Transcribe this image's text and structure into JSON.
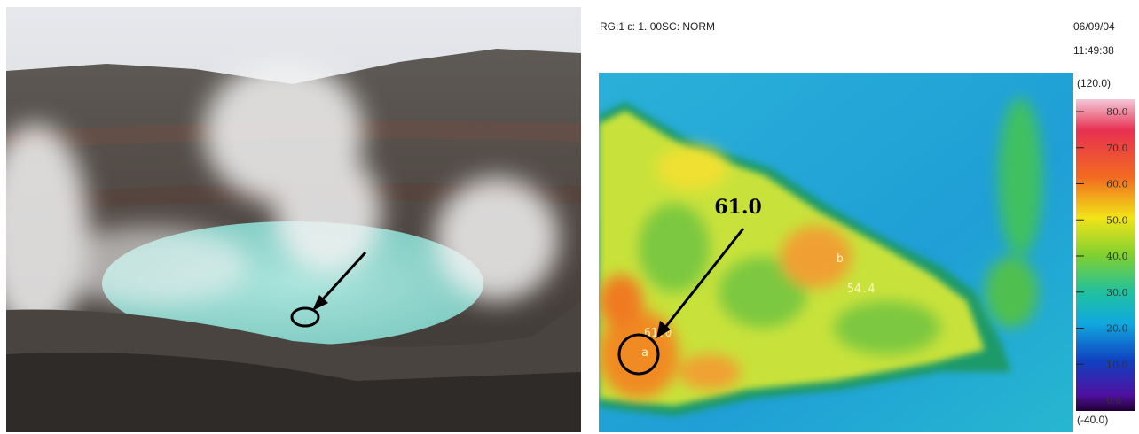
{
  "thermal": {
    "header": "RG:1 ε: 1. 00SC: NORM",
    "date": "06/09/04",
    "time": "11:49:38",
    "range_max": "(120.0)",
    "range_min": "(-40.0)",
    "scale_labels": [
      "80.0",
      "70.0",
      "60.0",
      "50.0",
      "40.0",
      "30.0",
      "20.0",
      "10.0",
      "0.0"
    ],
    "point_a": {
      "marker": "a",
      "reading": "61.0"
    },
    "point_b": {
      "marker": "b",
      "reading": "54.4"
    },
    "annotation": "61.0"
  }
}
